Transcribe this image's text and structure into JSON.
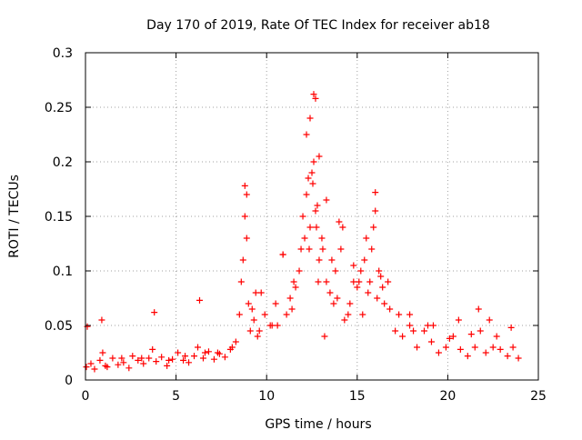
{
  "chart_data": {
    "type": "scatter",
    "title": "Day 170 of 2019, Rate Of TEC Index for receiver ab18",
    "xlabel": "GPS time / hours",
    "ylabel": "ROTI / TECUs",
    "xlim": [
      0,
      25
    ],
    "ylim": [
      0,
      0.3
    ],
    "xticks": [
      "0",
      "5",
      "10",
      "15",
      "20",
      "25"
    ],
    "yticks": [
      "0",
      "0.05",
      "0.1",
      "0.15",
      "0.2",
      "0.25",
      "0.3"
    ],
    "grid": true,
    "marker": "+",
    "color": "#ff0000",
    "series": [
      {
        "name": "ROTI",
        "x": [
          0.05,
          0.3,
          0.5,
          0.8,
          0.95,
          1.2,
          1.5,
          1.8,
          2.1,
          2.4,
          2.6,
          2.9,
          3.2,
          3.5,
          3.7,
          3.9,
          4.2,
          4.5,
          4.8,
          5.1,
          5.4,
          5.7,
          6.0,
          6.2,
          6.5,
          6.8,
          7.1,
          7.4,
          7.7,
          8.0,
          8.3,
          8.5,
          8.6,
          8.7,
          8.8,
          8.9,
          9.0,
          9.1,
          9.3,
          9.5,
          9.7,
          9.9,
          10.2,
          10.5,
          10.9,
          11.1,
          11.3,
          11.6,
          11.9,
          12.0,
          12.2,
          12.3,
          12.4,
          12.5,
          12.6,
          12.7,
          12.8,
          12.9,
          13.1,
          13.3,
          13.5,
          13.8,
          14.0,
          14.2,
          14.5,
          14.8,
          15.0,
          15.2,
          15.4,
          15.6,
          15.8,
          15.9,
          16.0,
          16.2,
          16.5,
          16.8,
          17.1,
          17.5,
          17.9,
          18.3,
          18.7,
          19.1,
          19.5,
          19.9,
          20.3,
          20.7,
          21.1,
          21.5,
          21.8,
          22.1,
          22.5,
          22.9,
          23.3,
          23.6,
          23.9,
          12.6,
          12.7,
          12.4,
          12.2,
          12.9,
          8.8,
          8.9,
          16.0,
          15.5,
          13.3,
          13.6,
          14.1,
          11.8,
          10.9,
          6.3,
          0.1,
          0.9,
          3.8,
          21.7,
          22.3,
          17.9,
          19.2,
          20.6,
          23.5,
          9.6,
          10.3,
          11.5,
          14.8,
          15.1,
          16.3,
          16.7,
          17.3,
          18.1,
          18.9,
          20.1,
          21.3,
          22.7,
          2.0,
          4.6,
          5.5,
          7.3,
          1.1,
          3.1,
          6.6,
          8.1,
          13.9,
          14.6,
          15.7,
          12.1,
          12.35,
          12.55,
          12.75,
          13.05,
          12.85,
          9.2,
          9.4,
          10.6,
          11.4,
          13.2,
          13.7,
          14.3,
          15.3,
          16.1,
          16.4
        ],
        "y": [
          0.012,
          0.015,
          0.01,
          0.018,
          0.025,
          0.012,
          0.02,
          0.014,
          0.016,
          0.011,
          0.022,
          0.018,
          0.015,
          0.02,
          0.028,
          0.017,
          0.021,
          0.013,
          0.019,
          0.025,
          0.018,
          0.016,
          0.022,
          0.03,
          0.02,
          0.026,
          0.019,
          0.024,
          0.021,
          0.028,
          0.035,
          0.06,
          0.09,
          0.11,
          0.15,
          0.13,
          0.07,
          0.045,
          0.055,
          0.04,
          0.08,
          0.06,
          0.05,
          0.07,
          0.115,
          0.06,
          0.075,
          0.085,
          0.12,
          0.15,
          0.17,
          0.185,
          0.14,
          0.19,
          0.2,
          0.155,
          0.16,
          0.11,
          0.12,
          0.09,
          0.08,
          0.1,
          0.145,
          0.14,
          0.06,
          0.09,
          0.085,
          0.1,
          0.11,
          0.08,
          0.12,
          0.14,
          0.155,
          0.1,
          0.07,
          0.065,
          0.045,
          0.04,
          0.05,
          0.03,
          0.045,
          0.035,
          0.025,
          0.03,
          0.04,
          0.028,
          0.022,
          0.03,
          0.045,
          0.025,
          0.03,
          0.028,
          0.022,
          0.03,
          0.02,
          0.262,
          0.258,
          0.24,
          0.225,
          0.205,
          0.178,
          0.17,
          0.172,
          0.13,
          0.165,
          0.11,
          0.12,
          0.1,
          0.115,
          0.073,
          0.049,
          0.055,
          0.062,
          0.065,
          0.055,
          0.06,
          0.05,
          0.055,
          0.048,
          0.045,
          0.05,
          0.09,
          0.105,
          0.09,
          0.095,
          0.09,
          0.06,
          0.045,
          0.05,
          0.038,
          0.042,
          0.04,
          0.02,
          0.018,
          0.022,
          0.025,
          0.013,
          0.02,
          0.025,
          0.03,
          0.075,
          0.07,
          0.09,
          0.13,
          0.12,
          0.18,
          0.14,
          0.13,
          0.09,
          0.065,
          0.08,
          0.05,
          0.065,
          0.04,
          0.07,
          0.055,
          0.06,
          0.075,
          0.085
        ]
      }
    ]
  }
}
